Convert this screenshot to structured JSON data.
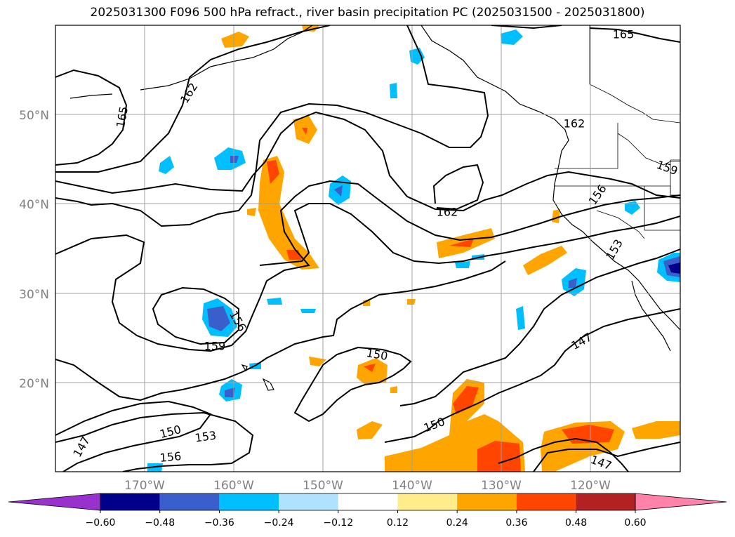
{
  "title": "2025031300 F096 500 hPa refract., river basin precipitation PC (2025031500 - 2025031800)",
  "map": {
    "lat_labels": [
      "50°N",
      "40°N",
      "30°N",
      "20°N"
    ],
    "lon_labels": [
      "170°W",
      "160°W",
      "150°W",
      "140°W",
      "130°W",
      "120°W"
    ],
    "contour_labels": [
      "165",
      "162",
      "165",
      "162",
      "162",
      "159",
      "156",
      "153",
      "159",
      "156",
      "150",
      "147",
      "150",
      "153",
      "156",
      "147",
      "150",
      "147"
    ]
  },
  "colorbar": {
    "ticks": [
      "−0.60",
      "−0.48",
      "−0.36",
      "−0.24",
      "−0.12",
      "0.12",
      "0.24",
      "0.36",
      "0.48",
      "0.60"
    ],
    "colors": [
      "#9932cc",
      "#00008b",
      "#3a5fcd",
      "#00bfff",
      "#b0e2ff",
      "#ffffff",
      "#ffec8b",
      "#ffa500",
      "#ff4500",
      "#b22222",
      "#ff82ab"
    ]
  }
}
